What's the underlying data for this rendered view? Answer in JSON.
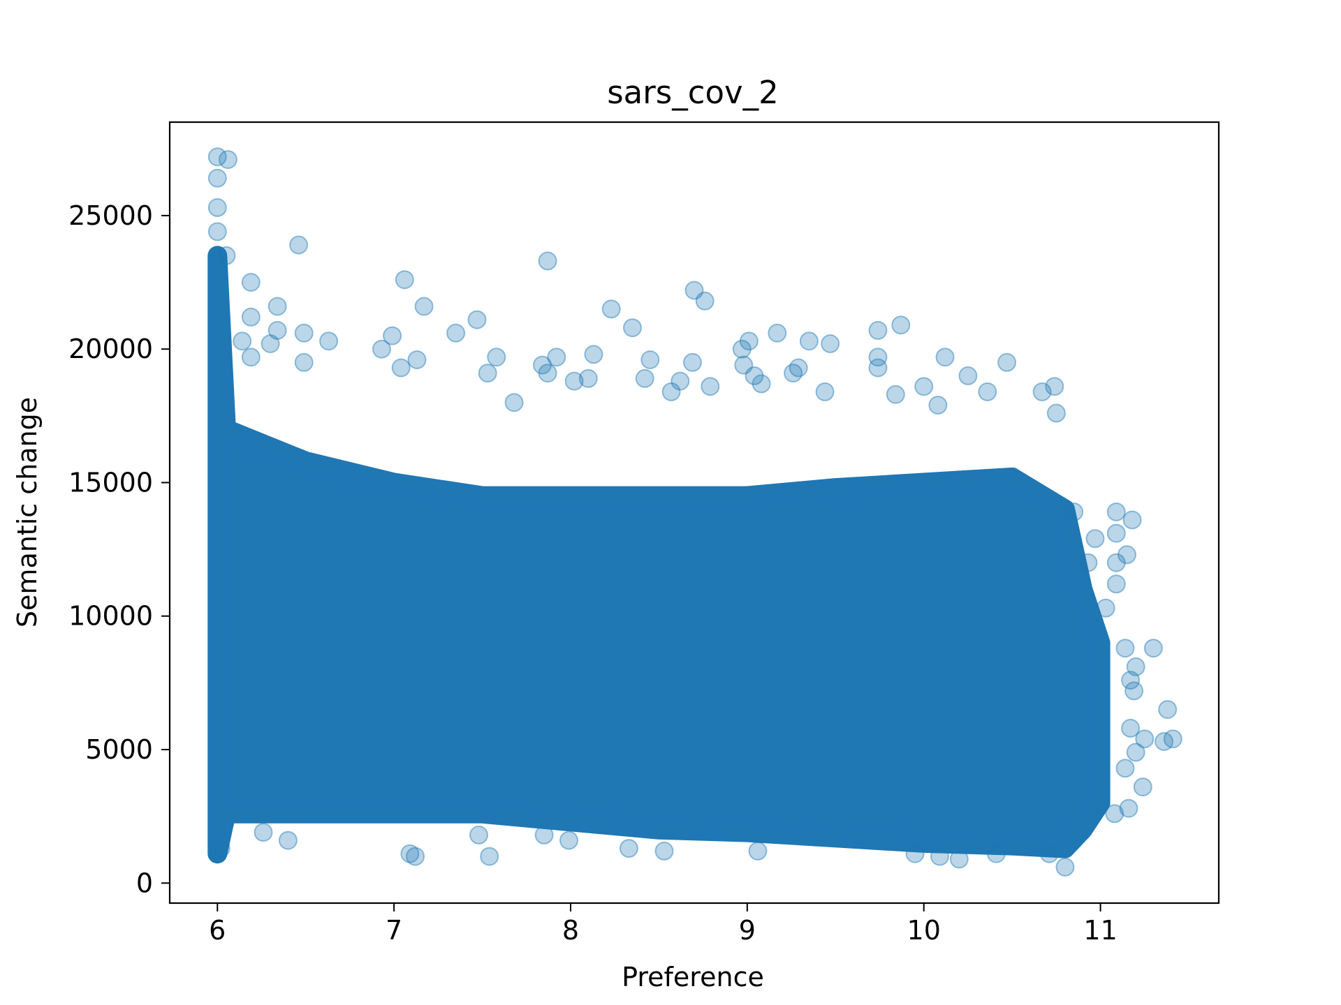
{
  "chart_data": {
    "type": "scatter",
    "title": "sars_cov_2",
    "xlabel": "Preference",
    "ylabel": "Semantic change",
    "xlim": [
      5.73,
      11.67
    ],
    "ylim": [
      -750,
      28500
    ],
    "xticks": [
      6,
      7,
      8,
      9,
      10,
      11
    ],
    "xtick_labels": [
      "6",
      "7",
      "8",
      "9",
      "10",
      "11"
    ],
    "yticks": [
      0,
      5000,
      10000,
      15000,
      20000,
      25000
    ],
    "ytick_labels": [
      "0",
      "5000",
      "10000",
      "15000",
      "20000",
      "25000"
    ],
    "grid": false,
    "legend": "none",
    "marker_color": "#1f77b4",
    "marker_alpha": 0.3,
    "dense_band": [
      {
        "x": 6.0,
        "lo": 1100,
        "hi": 23500
      },
      {
        "x": 6.05,
        "lo": 2600,
        "hi": 17000
      },
      {
        "x": 6.5,
        "lo": 2600,
        "hi": 15800
      },
      {
        "x": 7.0,
        "lo": 2600,
        "hi": 15000
      },
      {
        "x": 7.5,
        "lo": 2600,
        "hi": 14500
      },
      {
        "x": 8.0,
        "lo": 2300,
        "hi": 14500
      },
      {
        "x": 8.5,
        "lo": 2000,
        "hi": 14500
      },
      {
        "x": 9.0,
        "lo": 1900,
        "hi": 14500
      },
      {
        "x": 9.5,
        "lo": 1700,
        "hi": 14800
      },
      {
        "x": 10.0,
        "lo": 1500,
        "hi": 15000
      },
      {
        "x": 10.5,
        "lo": 1400,
        "hi": 15200
      },
      {
        "x": 10.8,
        "lo": 1300,
        "hi": 14000
      },
      {
        "x": 10.9,
        "lo": 2000,
        "hi": 11000
      },
      {
        "x": 11.0,
        "lo": 3000,
        "hi": 9000
      }
    ],
    "points": [
      {
        "x": 6.0,
        "y": 27200
      },
      {
        "x": 6.06,
        "y": 27100
      },
      {
        "x": 6.0,
        "y": 26400
      },
      {
        "x": 6.0,
        "y": 25300
      },
      {
        "x": 6.0,
        "y": 24400
      },
      {
        "x": 6.05,
        "y": 23500
      },
      {
        "x": 6.46,
        "y": 23900
      },
      {
        "x": 6.19,
        "y": 22500
      },
      {
        "x": 6.34,
        "y": 21600
      },
      {
        "x": 6.19,
        "y": 21200
      },
      {
        "x": 6.34,
        "y": 20700
      },
      {
        "x": 6.49,
        "y": 20600
      },
      {
        "x": 6.14,
        "y": 20300
      },
      {
        "x": 6.63,
        "y": 20300
      },
      {
        "x": 6.3,
        "y": 20200
      },
      {
        "x": 6.19,
        "y": 19700
      },
      {
        "x": 6.49,
        "y": 19500
      },
      {
        "x": 7.06,
        "y": 22600
      },
      {
        "x": 7.17,
        "y": 21600
      },
      {
        "x": 6.99,
        "y": 20500
      },
      {
        "x": 6.93,
        "y": 20000
      },
      {
        "x": 7.13,
        "y": 19600
      },
      {
        "x": 7.04,
        "y": 19300
      },
      {
        "x": 7.47,
        "y": 21100
      },
      {
        "x": 7.35,
        "y": 20600
      },
      {
        "x": 7.58,
        "y": 19700
      },
      {
        "x": 7.53,
        "y": 19100
      },
      {
        "x": 7.68,
        "y": 18000
      },
      {
        "x": 7.87,
        "y": 23300
      },
      {
        "x": 7.92,
        "y": 19700
      },
      {
        "x": 7.84,
        "y": 19400
      },
      {
        "x": 7.87,
        "y": 19100
      },
      {
        "x": 8.13,
        "y": 19800
      },
      {
        "x": 8.1,
        "y": 18900
      },
      {
        "x": 8.02,
        "y": 18800
      },
      {
        "x": 8.23,
        "y": 21500
      },
      {
        "x": 8.35,
        "y": 20800
      },
      {
        "x": 8.45,
        "y": 19600
      },
      {
        "x": 8.42,
        "y": 18900
      },
      {
        "x": 8.7,
        "y": 22200
      },
      {
        "x": 8.76,
        "y": 21800
      },
      {
        "x": 8.69,
        "y": 19500
      },
      {
        "x": 8.62,
        "y": 18800
      },
      {
        "x": 8.79,
        "y": 18600
      },
      {
        "x": 8.57,
        "y": 18400
      },
      {
        "x": 8.97,
        "y": 20000
      },
      {
        "x": 9.01,
        "y": 20300
      },
      {
        "x": 8.98,
        "y": 19400
      },
      {
        "x": 9.04,
        "y": 19000
      },
      {
        "x": 9.08,
        "y": 18700
      },
      {
        "x": 9.17,
        "y": 20600
      },
      {
        "x": 9.35,
        "y": 20300
      },
      {
        "x": 9.47,
        "y": 20200
      },
      {
        "x": 9.26,
        "y": 19100
      },
      {
        "x": 9.29,
        "y": 19300
      },
      {
        "x": 9.44,
        "y": 18400
      },
      {
        "x": 9.74,
        "y": 20700
      },
      {
        "x": 9.87,
        "y": 20900
      },
      {
        "x": 9.74,
        "y": 19700
      },
      {
        "x": 9.74,
        "y": 19300
      },
      {
        "x": 9.84,
        "y": 18300
      },
      {
        "x": 10.0,
        "y": 18600
      },
      {
        "x": 10.12,
        "y": 19700
      },
      {
        "x": 10.25,
        "y": 19000
      },
      {
        "x": 10.08,
        "y": 17900
      },
      {
        "x": 10.47,
        "y": 19500
      },
      {
        "x": 10.36,
        "y": 18400
      },
      {
        "x": 10.67,
        "y": 18400
      },
      {
        "x": 10.74,
        "y": 18600
      },
      {
        "x": 10.75,
        "y": 17600
      },
      {
        "x": 10.85,
        "y": 13900
      },
      {
        "x": 11.09,
        "y": 13900
      },
      {
        "x": 11.18,
        "y": 13600
      },
      {
        "x": 11.09,
        "y": 13100
      },
      {
        "x": 10.93,
        "y": 12000
      },
      {
        "x": 11.15,
        "y": 12300
      },
      {
        "x": 10.97,
        "y": 12900
      },
      {
        "x": 11.09,
        "y": 12000
      },
      {
        "x": 11.09,
        "y": 11200
      },
      {
        "x": 11.03,
        "y": 10300
      },
      {
        "x": 11.14,
        "y": 8800
      },
      {
        "x": 11.3,
        "y": 8800
      },
      {
        "x": 11.2,
        "y": 8100
      },
      {
        "x": 11.17,
        "y": 7600
      },
      {
        "x": 11.19,
        "y": 7200
      },
      {
        "x": 11.38,
        "y": 6500
      },
      {
        "x": 11.17,
        "y": 5800
      },
      {
        "x": 11.25,
        "y": 5400
      },
      {
        "x": 11.36,
        "y": 5300
      },
      {
        "x": 11.41,
        "y": 5400
      },
      {
        "x": 11.2,
        "y": 4900
      },
      {
        "x": 11.14,
        "y": 4300
      },
      {
        "x": 11.24,
        "y": 3600
      },
      {
        "x": 11.16,
        "y": 2800
      },
      {
        "x": 11.08,
        "y": 2600
      },
      {
        "x": 10.8,
        "y": 600
      },
      {
        "x": 10.71,
        "y": 1100
      },
      {
        "x": 10.41,
        "y": 1100
      },
      {
        "x": 10.2,
        "y": 900
      },
      {
        "x": 10.09,
        "y": 1000
      },
      {
        "x": 9.95,
        "y": 1100
      },
      {
        "x": 9.06,
        "y": 1200
      },
      {
        "x": 8.53,
        "y": 1200
      },
      {
        "x": 8.33,
        "y": 1300
      },
      {
        "x": 7.54,
        "y": 1000
      },
      {
        "x": 7.12,
        "y": 1000
      },
      {
        "x": 7.09,
        "y": 1100
      },
      {
        "x": 7.48,
        "y": 1800
      },
      {
        "x": 6.4,
        "y": 1600
      },
      {
        "x": 6.26,
        "y": 1900
      },
      {
        "x": 6.0,
        "y": 1100
      },
      {
        "x": 6.02,
        "y": 1300
      },
      {
        "x": 7.85,
        "y": 1800
      },
      {
        "x": 7.99,
        "y": 1600
      }
    ]
  }
}
